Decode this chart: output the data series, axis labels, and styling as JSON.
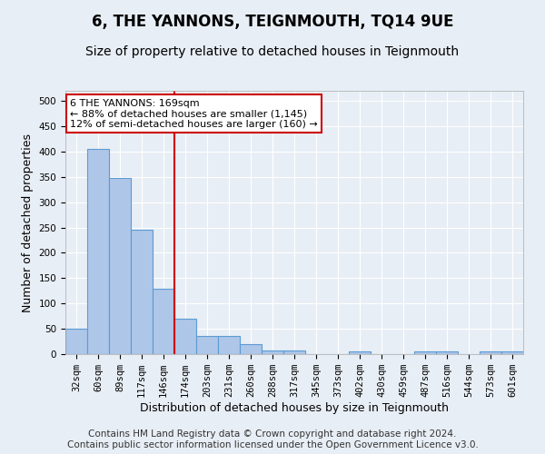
{
  "title": "6, THE YANNONS, TEIGNMOUTH, TQ14 9UE",
  "subtitle": "Size of property relative to detached houses in Teignmouth",
  "xlabel": "Distribution of detached houses by size in Teignmouth",
  "ylabel": "Number of detached properties",
  "categories": [
    "32sqm",
    "60sqm",
    "89sqm",
    "117sqm",
    "146sqm",
    "174sqm",
    "203sqm",
    "231sqm",
    "260sqm",
    "288sqm",
    "317sqm",
    "345sqm",
    "373sqm",
    "402sqm",
    "430sqm",
    "459sqm",
    "487sqm",
    "516sqm",
    "544sqm",
    "573sqm",
    "601sqm"
  ],
  "values": [
    50,
    405,
    348,
    246,
    130,
    70,
    35,
    35,
    20,
    8,
    8,
    0,
    0,
    5,
    0,
    0,
    5,
    5,
    0,
    5,
    5
  ],
  "bar_color": "#aec6e8",
  "bar_edge_color": "#5b9bd5",
  "highlight_line_index": 5,
  "highlight_color": "#cc0000",
  "annotation_text": "6 THE YANNONS: 169sqm\n← 88% of detached houses are smaller (1,145)\n12% of semi-detached houses are larger (160) →",
  "annotation_box_color": "#ffffff",
  "annotation_box_edge": "#cc0000",
  "ylim": [
    0,
    520
  ],
  "yticks": [
    0,
    50,
    100,
    150,
    200,
    250,
    300,
    350,
    400,
    450,
    500
  ],
  "footer_line1": "Contains HM Land Registry data © Crown copyright and database right 2024.",
  "footer_line2": "Contains public sector information licensed under the Open Government Licence v3.0.",
  "background_color": "#e8eef5",
  "plot_bg_color": "#e8eef5",
  "title_fontsize": 12,
  "subtitle_fontsize": 10,
  "axis_label_fontsize": 9,
  "tick_fontsize": 7.5,
  "footer_fontsize": 7.5
}
